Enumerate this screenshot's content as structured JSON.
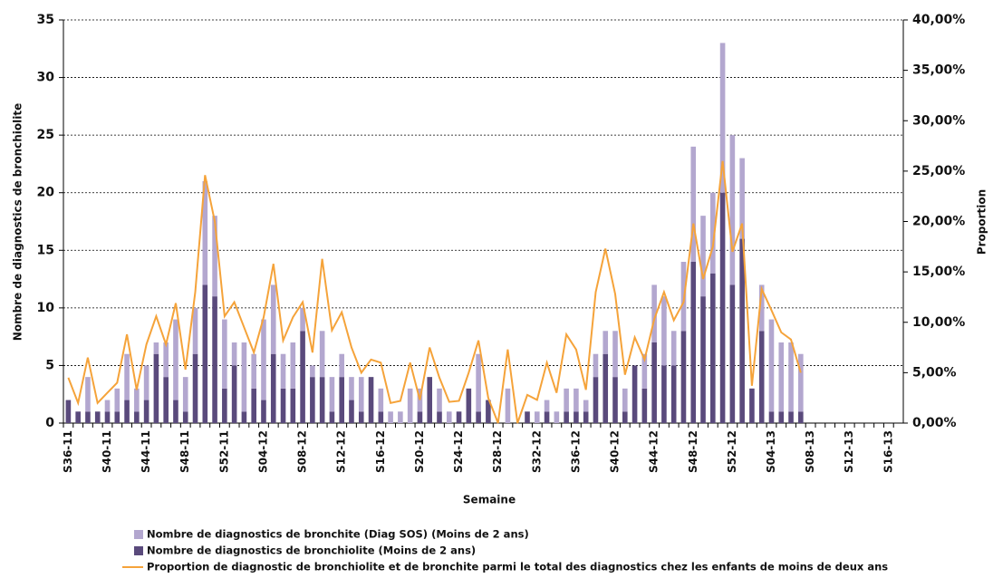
{
  "chart_data": {
    "type": "bar",
    "x_label": "Semaine",
    "y_label": "Nombre de diagnostics de bronchiolite",
    "y2_label": "Proportion",
    "categories": [
      "S36-11",
      null,
      null,
      null,
      "S40-11",
      null,
      null,
      null,
      "S44-11",
      null,
      null,
      null,
      "S48-11",
      null,
      null,
      null,
      "S52-11",
      null,
      null,
      null,
      "S04-12",
      null,
      null,
      null,
      "S08-12",
      null,
      null,
      null,
      "S12-12",
      null,
      null,
      null,
      "S16-12",
      null,
      null,
      null,
      "S20-12",
      null,
      null,
      null,
      "S24-12",
      null,
      null,
      null,
      "S28-12",
      null,
      null,
      null,
      "S32-12",
      null,
      null,
      null,
      "S36-12",
      null,
      null,
      null,
      "S40-12",
      null,
      null,
      null,
      "S44-12",
      null,
      null,
      null,
      "S48-12",
      null,
      null,
      null,
      "S52-12",
      null,
      null,
      null,
      "S04-13",
      null,
      null,
      null,
      "S08-13",
      null,
      null,
      null,
      "S12-13",
      null,
      null,
      null,
      "S16-13",
      null
    ],
    "series": [
      {
        "name": "Nombre de diagnostics de bronchite (Diag SOS) (Moins de 2 ans)",
        "color": "#b3a7cf",
        "stack": 1,
        "values": [
          0,
          0,
          3,
          0,
          1,
          2,
          4,
          2,
          3,
          1,
          3,
          7,
          3,
          4,
          9,
          7,
          6,
          2,
          6,
          3,
          7,
          6,
          3,
          4,
          2,
          1,
          4,
          3,
          2,
          2,
          3,
          0,
          2,
          1,
          1,
          3,
          2,
          0,
          2,
          1,
          0,
          0,
          5,
          0,
          0,
          3,
          0,
          0,
          1,
          1,
          1,
          2,
          2,
          1,
          2,
          2,
          4,
          2,
          0,
          3,
          5,
          6,
          3,
          6,
          10,
          7,
          7,
          13,
          13,
          7,
          0,
          4,
          8,
          6,
          6,
          5,
          null,
          null,
          null,
          null,
          null,
          null,
          null,
          null,
          null,
          null
        ]
      },
      {
        "name": "Nombre de diagnostics de bronchiolite (Moins de 2 ans)",
        "color": "#5a4a7c",
        "stack": 0,
        "values": [
          2,
          1,
          1,
          1,
          1,
          1,
          2,
          1,
          2,
          6,
          4,
          2,
          1,
          6,
          12,
          11,
          3,
          5,
          1,
          3,
          2,
          6,
          3,
          3,
          8,
          4,
          4,
          1,
          4,
          2,
          1,
          4,
          1,
          0,
          0,
          0,
          1,
          4,
          1,
          0,
          1,
          3,
          1,
          2,
          0,
          0,
          0,
          1,
          0,
          1,
          0,
          1,
          1,
          1,
          4,
          6,
          4,
          1,
          5,
          3,
          7,
          5,
          5,
          8,
          14,
          11,
          13,
          20,
          12,
          16,
          3,
          8,
          1,
          1,
          1,
          1,
          null,
          null,
          null,
          null,
          null,
          null,
          null,
          null,
          null,
          null
        ]
      },
      {
        "name": "Proportion de diagnostic de bronchiolite et de bronchite parmi le total des diagnostics chez les enfants de moins de deux ans",
        "color": "#f5a33a",
        "axis": "y2",
        "type": "line",
        "values": [
          4.5,
          2,
          6.5,
          2,
          3,
          4,
          8.8,
          3.3,
          7.8,
          10.6,
          7.8,
          11.9,
          5.3,
          13,
          24.6,
          20,
          10.6,
          12,
          9.5,
          7,
          10.5,
          15.8,
          8.2,
          10.5,
          12,
          7,
          16.3,
          9.2,
          11,
          7.5,
          5,
          6.3,
          6,
          2,
          2.2,
          6,
          2.3,
          7.5,
          4.5,
          2.1,
          2.2,
          5,
          8.2,
          2.5,
          0,
          7.3,
          0,
          2.8,
          2.3,
          6,
          3,
          8.8,
          7.3,
          3.3,
          13,
          17.3,
          12.8,
          4.8,
          8.5,
          6.3,
          10.3,
          13,
          10.2,
          12,
          19.8,
          14.3,
          17.5,
          26,
          17,
          19.8,
          3.7,
          13.3,
          11.2,
          9,
          8.3,
          5,
          null,
          null,
          null,
          null,
          null,
          null,
          null,
          null,
          null,
          null
        ]
      }
    ],
    "ylim": [
      0,
      35
    ],
    "yticks": [
      0,
      5,
      10,
      15,
      20,
      25,
      30,
      35
    ],
    "y2lim": [
      0,
      40
    ],
    "y2ticks": [
      {
        "value": 0,
        "label": "0,00%"
      },
      {
        "value": 5,
        "label": "5,00%"
      },
      {
        "value": 10,
        "label": "10,00%"
      },
      {
        "value": 15,
        "label": "15,00%"
      },
      {
        "value": 20,
        "label": "20,00%"
      },
      {
        "value": 25,
        "label": "25,00%"
      },
      {
        "value": 30,
        "label": "30,00%"
      },
      {
        "value": 35,
        "label": "35,00%"
      },
      {
        "value": 40,
        "label": "40,00%"
      }
    ],
    "grid": true,
    "legend": "bottom"
  }
}
